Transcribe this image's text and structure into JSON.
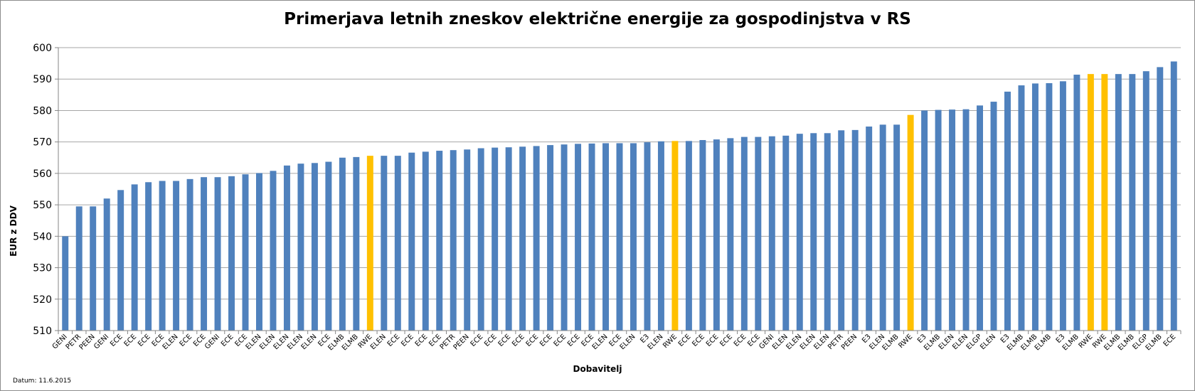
{
  "chart_data": {
    "type": "bar",
    "title": "Primerjava letnih zneskov električne energije za gospodinjstva v RS",
    "xlabel": "Dobavitelj",
    "ylabel": "EUR z DDV",
    "ylim": [
      510,
      600
    ],
    "yticks": [
      "510",
      "520",
      "530",
      "540",
      "550",
      "560",
      "570",
      "580",
      "590",
      "600"
    ],
    "grid": true,
    "colors": {
      "default": "#4f81bd",
      "highlight": "#ffc000"
    },
    "highlight_category": "RWE",
    "categories": [
      "GENI",
      "PETR",
      "PEEN",
      "GENI",
      "ECE",
      "ECE",
      "ECE",
      "ECE",
      "ELEN",
      "ECE",
      "ECE",
      "GENI",
      "ECE",
      "ECE",
      "ELEN",
      "ELEN",
      "ELEN",
      "ELEN",
      "ELEN",
      "ECE",
      "ELMB",
      "ELMB",
      "RWE",
      "ELEN",
      "ECE",
      "ECE",
      "ECE",
      "ECE",
      "PETR",
      "PEEN",
      "ECE",
      "ECE",
      "ECE",
      "ECE",
      "ECE",
      "ECE",
      "ECE",
      "ECE",
      "ECE",
      "ELEN",
      "ECE",
      "ELEN",
      "E3",
      "ELEN",
      "RWE",
      "ECE",
      "ECE",
      "ECE",
      "ECE",
      "ECE",
      "ECE",
      "GENI",
      "ELEN",
      "ELEN",
      "ELEN",
      "ELEN",
      "PETR",
      "PEEN",
      "E3",
      "ELEN",
      "ELMB",
      "RWE",
      "E3",
      "ELMB",
      "ELEN",
      "ELEN",
      "ELGP",
      "ELEN",
      "E3",
      "ELMB",
      "ELMB",
      "ELMB",
      "E3",
      "ELMB",
      "RWE",
      "RWE",
      "ELMB",
      "ELMB",
      "ELGP",
      "ELMB",
      "ECE"
    ],
    "values": [
      540.0,
      549.5,
      549.5,
      552.0,
      554.7,
      556.5,
      557.2,
      557.6,
      557.6,
      558.2,
      558.8,
      558.8,
      559.1,
      559.7,
      560.1,
      560.8,
      562.5,
      563.1,
      563.3,
      563.7,
      565.0,
      565.2,
      565.6,
      565.6,
      565.6,
      566.6,
      566.9,
      567.2,
      567.4,
      567.6,
      568.0,
      568.2,
      568.3,
      568.5,
      568.7,
      569.0,
      569.2,
      569.4,
      569.5,
      569.6,
      569.6,
      569.6,
      569.9,
      570.2,
      570.3,
      570.3,
      570.6,
      570.8,
      571.2,
      571.6,
      571.6,
      571.8,
      572.0,
      572.6,
      572.8,
      572.8,
      573.7,
      573.8,
      574.9,
      575.5,
      575.5,
      578.6,
      580.0,
      580.2,
      580.3,
      580.4,
      581.6,
      582.8,
      586.0,
      588.0,
      588.6,
      588.7,
      589.3,
      591.4,
      591.6,
      591.6,
      591.6,
      591.6,
      592.5,
      593.8,
      595.6
    ]
  },
  "footnote": "Datum: 11.6.2015"
}
